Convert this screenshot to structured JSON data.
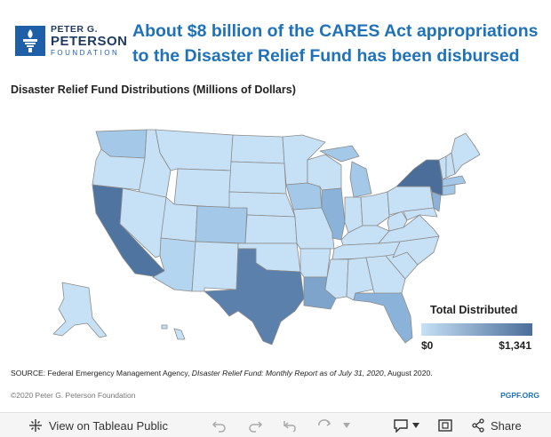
{
  "header": {
    "logo_line1": "PETER G.",
    "logo_line2": "PETERSON",
    "logo_line3": "FOUNDATION",
    "title": "About $8 billion of the CARES Act appropriations to the Disaster Relief Fund has been disbursed"
  },
  "map": {
    "subtitle": "Disaster Relief Fund Distributions (Millions of Dollars)",
    "legend_title": "Total Distributed",
    "legend_min": "$0",
    "legend_max": "$1,341",
    "colors": {
      "min": "#c6e0f5",
      "max": "#4a6e99",
      "border": "#8a8a8a"
    }
  },
  "footer": {
    "source_prefix": "SOURCE: Federal Emergency Management Agency, ",
    "source_report": "DIsaster Relief Fund: Monthly Report as of July 31, 2020",
    "source_suffix": ", August 2020.",
    "copyright": "©2020 Peter G. Peterson Foundation",
    "site": "PGPF.ORG"
  },
  "toolbar": {
    "view_label": "View on Tableau Public",
    "share_label": "Share"
  }
}
